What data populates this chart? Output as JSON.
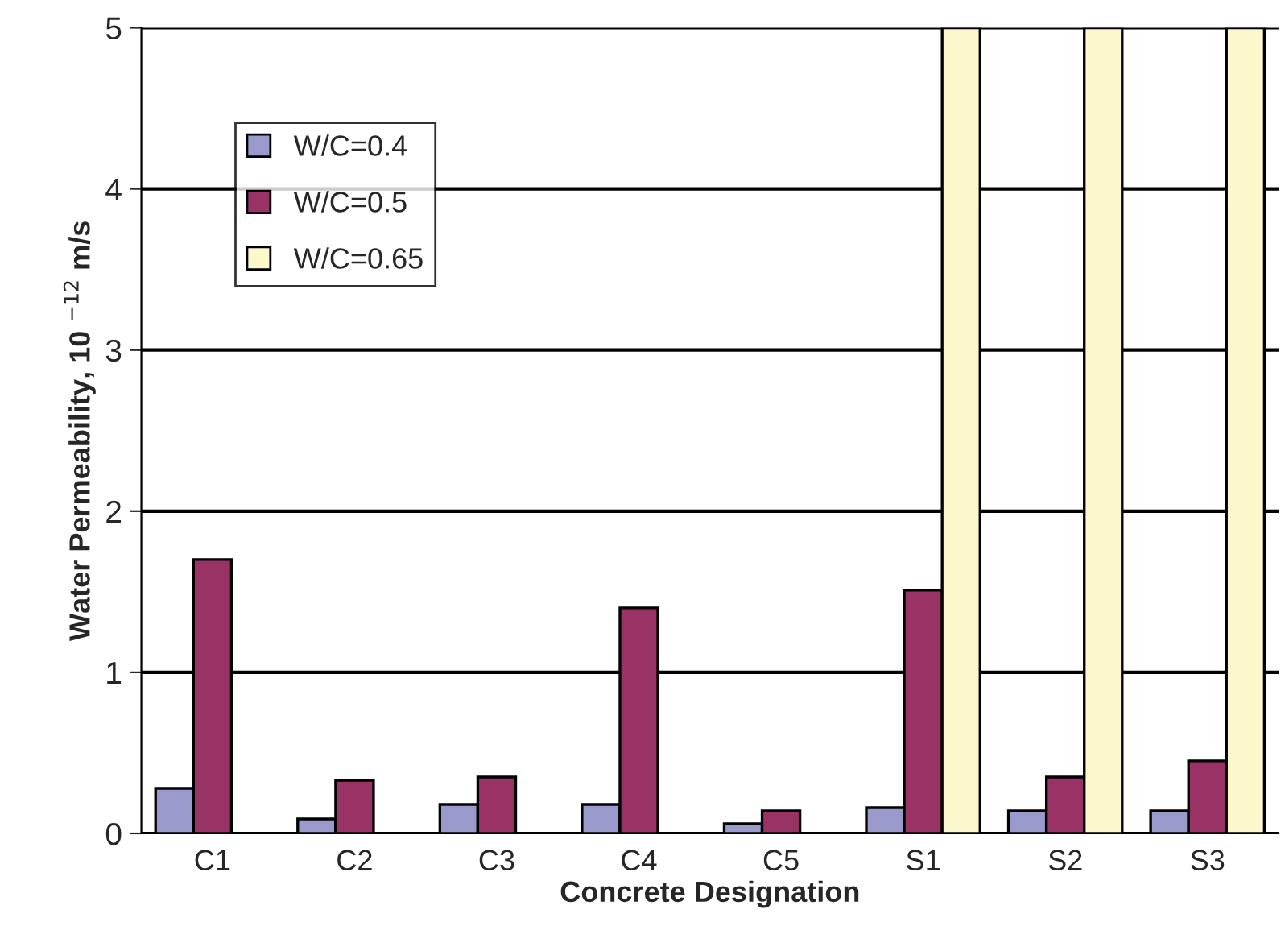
{
  "chart_data": {
    "type": "bar",
    "xlabel": "Concrete Designation",
    "ylabel": "Water Permeability, 10 $^{−12}$ m/s",
    "categories": [
      "C1",
      "C2",
      "C3",
      "C4",
      "C5",
      "S1",
      "S2",
      "S3"
    ],
    "series": [
      {
        "name": "W/C=0.4",
        "color": "#9999cc",
        "values": [
          0.28,
          0.09,
          0.18,
          0.18,
          0.06,
          0.16,
          0.14,
          0.14
        ]
      },
      {
        "name": "W/C=0.5",
        "color": "#993366",
        "values": [
          1.7,
          0.33,
          0.35,
          1.4,
          0.14,
          1.51,
          0.35,
          0.45
        ]
      },
      {
        "name": "W/C=0.65",
        "color": "#fbf8cc",
        "values": [
          null,
          null,
          null,
          null,
          null,
          5,
          5,
          5
        ]
      }
    ],
    "ylim": [
      0,
      5
    ],
    "yticks": [
      0,
      1,
      2,
      3,
      4,
      5
    ],
    "grid": "y",
    "legend": "top left"
  }
}
